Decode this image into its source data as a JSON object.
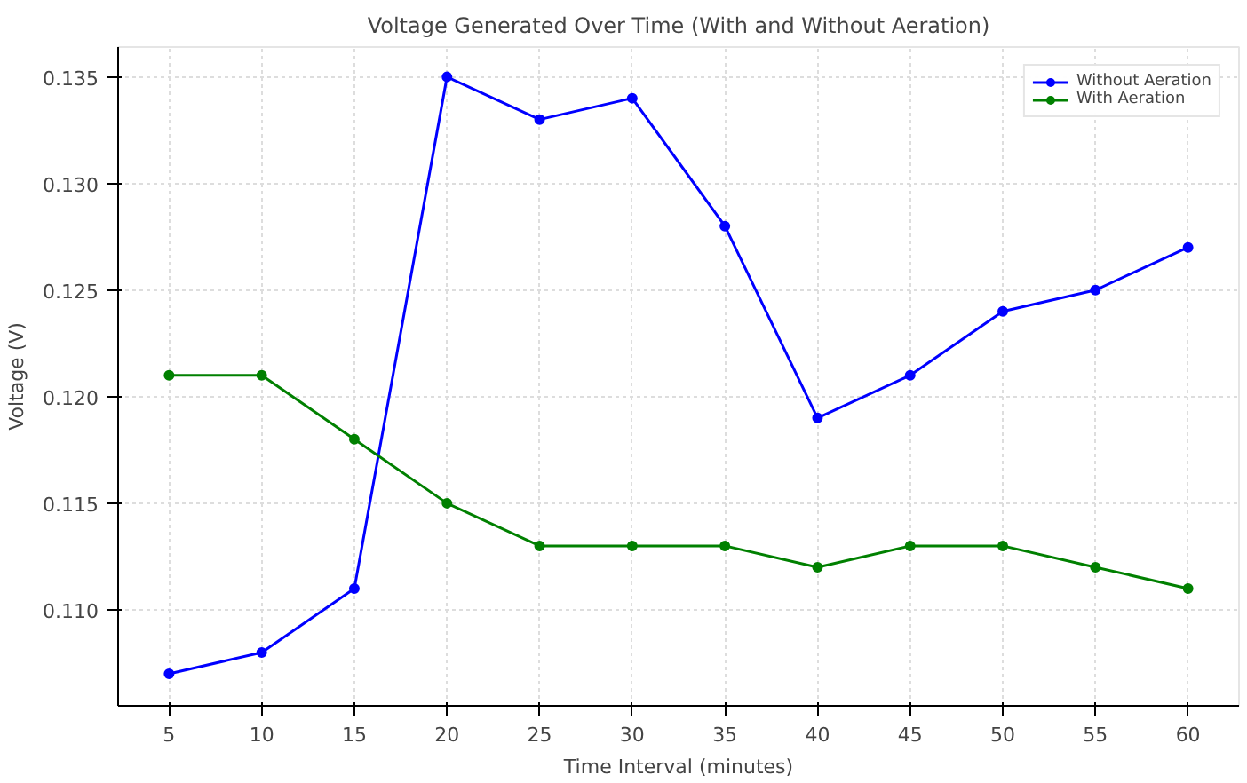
{
  "chart_data": {
    "type": "line",
    "title": "Voltage Generated Over Time (With and Without Aeration)",
    "xlabel": "Time Interval (minutes)",
    "ylabel": "Voltage (V)",
    "x": [
      5,
      10,
      15,
      20,
      25,
      30,
      35,
      40,
      45,
      50,
      55,
      60
    ],
    "series": [
      {
        "name": "Without Aeration",
        "color": "#0000ff",
        "values": [
          0.107,
          0.108,
          0.111,
          0.135,
          0.133,
          0.134,
          0.128,
          0.119,
          0.121,
          0.124,
          0.125,
          0.127
        ]
      },
      {
        "name": "With Aeration",
        "color": "#008000",
        "values": [
          0.121,
          0.121,
          0.118,
          0.115,
          0.113,
          0.113,
          0.113,
          0.112,
          0.113,
          0.113,
          0.112,
          0.111
        ]
      }
    ],
    "xlim": [
      2.25,
      62.75
    ],
    "ylim": [
      0.1055,
      0.1364
    ],
    "xticks": [
      5,
      10,
      15,
      20,
      25,
      30,
      35,
      40,
      45,
      50,
      55,
      60
    ],
    "yticks": [
      {
        "value": 0.11,
        "label": "0.110"
      },
      {
        "value": 0.115,
        "label": "0.115"
      },
      {
        "value": 0.12,
        "label": "0.120"
      },
      {
        "value": 0.125,
        "label": "0.125"
      },
      {
        "value": 0.13,
        "label": "0.130"
      },
      {
        "value": 0.135,
        "label": "0.135"
      }
    ],
    "grid": true,
    "legend": "top right",
    "marker": "circle",
    "line_style": "solid"
  }
}
